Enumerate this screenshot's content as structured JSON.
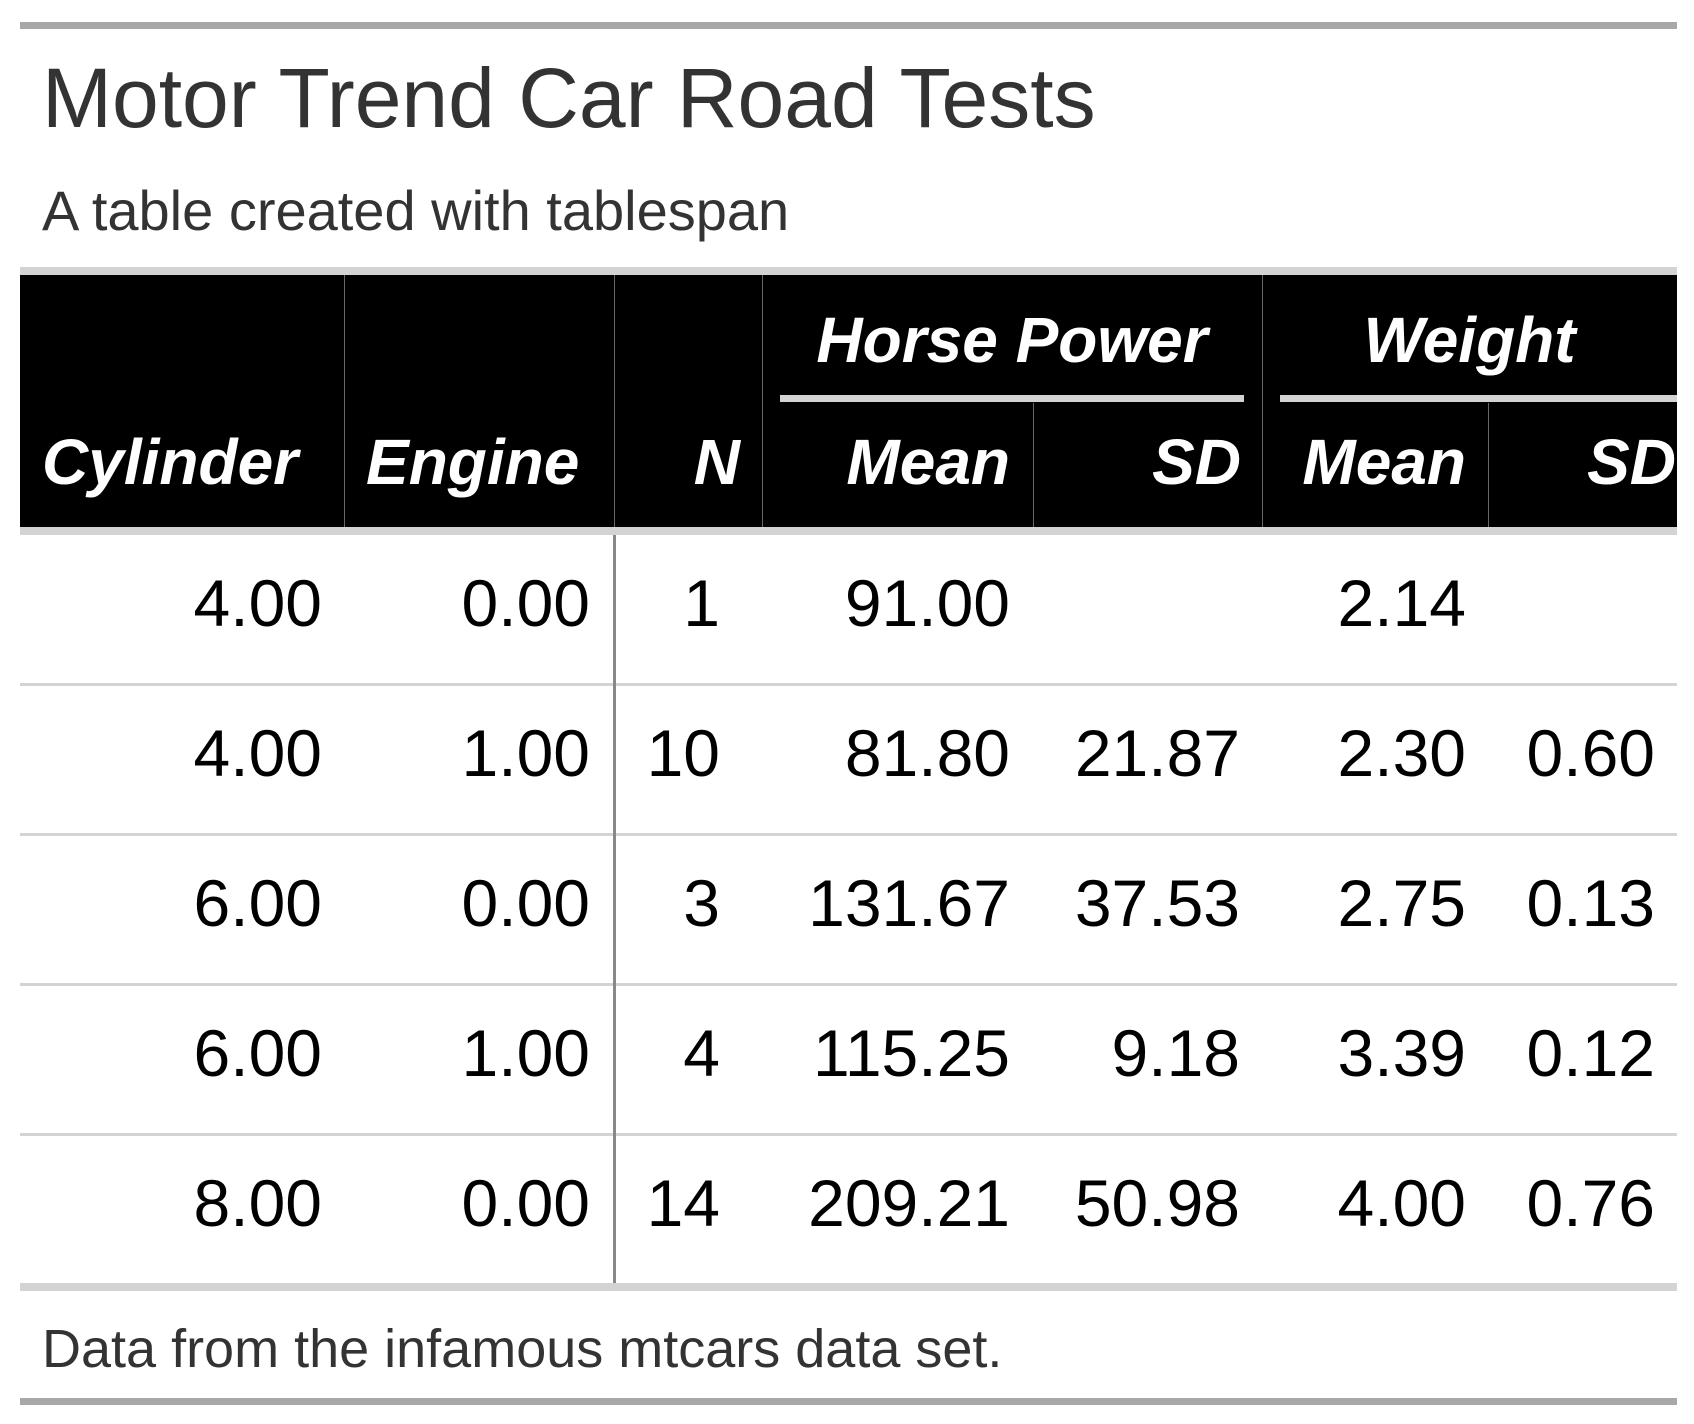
{
  "title": "Motor Trend Car Road Tests",
  "subtitle": "A table created with tablespan",
  "spanners": [
    "Horse Power",
    "Weight"
  ],
  "columns": [
    "Cylinder",
    "Engine",
    "N",
    "Mean",
    "SD",
    "Mean",
    "SD"
  ],
  "rows": [
    [
      "4.00",
      "0.00",
      "1",
      "91.00",
      "",
      "2.14",
      ""
    ],
    [
      "4.00",
      "1.00",
      "10",
      "81.80",
      "21.87",
      "2.30",
      "0.60"
    ],
    [
      "6.00",
      "0.00",
      "3",
      "131.67",
      "37.53",
      "2.75",
      "0.13"
    ],
    [
      "6.00",
      "1.00",
      "4",
      "115.25",
      "9.18",
      "3.39",
      "0.12"
    ],
    [
      "8.00",
      "0.00",
      "14",
      "209.21",
      "50.98",
      "4.00",
      "0.76"
    ]
  ],
  "footnote": "Data from the infamous mtcars data set.",
  "colors": {
    "header_bg": "#000000",
    "header_text": "#ffffff",
    "rule": "#d3d3d3",
    "outer_rule": "#a8a8a8",
    "text": "#333333"
  }
}
